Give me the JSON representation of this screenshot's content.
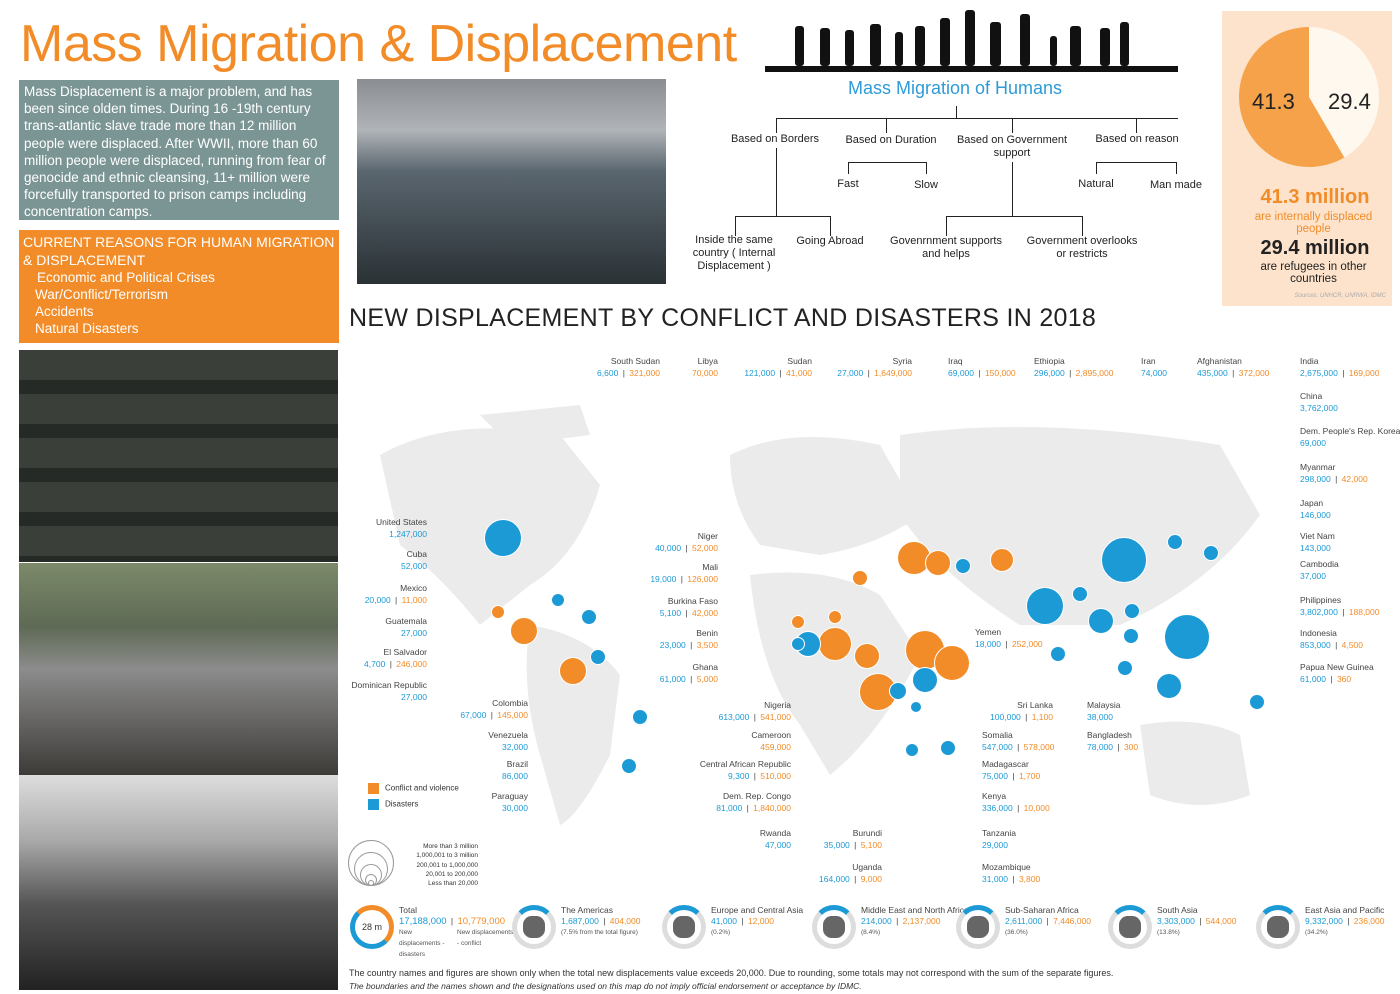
{
  "title": "Mass Migration & Displacement",
  "intro": "Mass Displacement is a major problem, and has been since olden times. During 16 -19th century trans-atlantic slave trade more than 12 million people were displaced. After WWII, more than 60 million people were displaced, running from fear of genocide and ethnic cleansing, 11+ million were forcefully transported to prison camps including concentration camps.",
  "reasons": {
    "heading": "CURRENT REASONS FOR HUMAN MIGRATION & DISPLACEMENT",
    "items": [
      "Economic and Political Crises",
      "War/Conflict/Terrorism",
      "Accidents",
      "Natural Disasters"
    ]
  },
  "tree": {
    "title": "Mass Migration of Humans",
    "borders": "Based on Borders",
    "duration": "Based on Duration",
    "government": "Based on Government support",
    "reason": "Based on reason",
    "fast": "Fast",
    "slow": "Slow",
    "natural": "Natural",
    "manmade": "Man made",
    "inside": "Inside the same country ( Internal Displacement )",
    "abroad": "Going Abroad",
    "gov_supports": "Govenrnment supports and helps",
    "gov_overlooks": "Government overlooks or restricts"
  },
  "stats": {
    "pie": [
      41.3,
      29.4
    ],
    "pie_left": "41.3",
    "pie_right": "29.4",
    "big1": "41.3 million",
    "sub1": "are internally displaced people",
    "big2": "29.4 million",
    "sub2": "are refugees in other countries",
    "source": "Sources: UNHCR, UNRWA, IDMC"
  },
  "map_title": "NEW DISPLACEMENT BY CONFLICT AND DISASTERS IN 2018",
  "colors": {
    "conflict": "#f28c28",
    "disasters": "#1c9ad6"
  },
  "countries": [
    {
      "name": "South Sudan",
      "d": "6,600",
      "c": "321,000"
    },
    {
      "name": "Libya",
      "c": "70,000"
    },
    {
      "name": "Sudan",
      "d": "121,000",
      "c": "41,000"
    },
    {
      "name": "Syria",
      "d": "27,000",
      "c": "1,649,000"
    },
    {
      "name": "Iraq",
      "d": "69,000",
      "c": "150,000"
    },
    {
      "name": "Ethiopia",
      "d": "296,000",
      "c": "2,895,000"
    },
    {
      "name": "Iran",
      "d": "74,000"
    },
    {
      "name": "Afghanistan",
      "d": "435,000",
      "c": "372,000"
    },
    {
      "name": "India",
      "d": "2,675,000",
      "c": "169,000"
    },
    {
      "name": "China",
      "d": "3,762,000"
    },
    {
      "name": "Dem. People's Rep. Korea",
      "d": "69,000"
    },
    {
      "name": "Myanmar",
      "d": "298,000",
      "c": "42,000"
    },
    {
      "name": "Japan",
      "d": "146,000"
    },
    {
      "name": "Viet Nam",
      "d": "143,000"
    },
    {
      "name": "Cambodia",
      "d": "37,000"
    },
    {
      "name": "Philippines",
      "d": "3,802,000",
      "c": "188,000"
    },
    {
      "name": "Indonesia",
      "d": "853,000",
      "c": "4,500"
    },
    {
      "name": "Papua New Guinea",
      "d": "61,000",
      "c": "360"
    },
    {
      "name": "United States",
      "d": "1,247,000"
    },
    {
      "name": "Cuba",
      "d": "52,000"
    },
    {
      "name": "Mexico",
      "d": "20,000",
      "c": "11,000"
    },
    {
      "name": "Guatemala",
      "d": "27,000"
    },
    {
      "name": "El Salvador",
      "d": "4,700",
      "c": "246,000"
    },
    {
      "name": "Dominican Republic",
      "d": "27,000"
    },
    {
      "name": "Colombia",
      "d": "67,000",
      "c": "145,000"
    },
    {
      "name": "Venezuela",
      "d": "32,000"
    },
    {
      "name": "Brazil",
      "d": "86,000"
    },
    {
      "name": "Paraguay",
      "d": "30,000"
    },
    {
      "name": "Niger",
      "d": "40,000",
      "c": "52,000"
    },
    {
      "name": "Mali",
      "d": "19,000",
      "c": "126,000"
    },
    {
      "name": "Burkina Faso",
      "d": "5,100",
      "c": "42,000"
    },
    {
      "name": "Benin",
      "d": "23,000",
      "c": "3,500"
    },
    {
      "name": "Ghana",
      "d": "61,000",
      "c": "5,000"
    },
    {
      "name": "Nigeria",
      "d": "613,000",
      "c": "541,000"
    },
    {
      "name": "Cameroon",
      "c": "459,000"
    },
    {
      "name": "Central African Republic",
      "d": "9,300",
      "c": "510,000"
    },
    {
      "name": "Dem. Rep. Congo",
      "d": "81,000",
      "c": "1,840,000"
    },
    {
      "name": "Rwanda",
      "d": "47,000"
    },
    {
      "name": "Burundi",
      "d": "35,000",
      "c": "5,100"
    },
    {
      "name": "Uganda",
      "d": "164,000",
      "c": "9,000"
    },
    {
      "name": "Yemen",
      "d": "18,000",
      "c": "252,000"
    },
    {
      "name": "Somalia",
      "d": "547,000",
      "c": "578,000"
    },
    {
      "name": "Madagascar",
      "d": "75,000",
      "c": "1,700"
    },
    {
      "name": "Kenya",
      "d": "336,000",
      "c": "10,000"
    },
    {
      "name": "Tanzania",
      "d": "29,000"
    },
    {
      "name": "Mozambique",
      "d": "31,000",
      "c": "3,800"
    },
    {
      "name": "Sri Lanka",
      "d": "100,000",
      "c": "1,100"
    },
    {
      "name": "Malaysia",
      "d": "38,000"
    },
    {
      "name": "Bangladesh",
      "d": "78,000",
      "c": "300"
    }
  ],
  "legend": {
    "conflict": "Conflict and violence",
    "disasters": "Disasters",
    "sizes": [
      "More than 3 million",
      "1,000,001 to 3 million",
      "200,001 to 1,000,000",
      "20,001 to 200,000",
      "Less than 20,000"
    ]
  },
  "regions": [
    {
      "name": "Total",
      "center": "28 m",
      "d": "17,188,000",
      "c": "10,779,000",
      "d_note": "New displacements - disasters",
      "c_note": "New displacements - conflict"
    },
    {
      "name": "The Americas",
      "d": "1,687,000",
      "c": "404,000",
      "pct": "(7.5% from the total figure)"
    },
    {
      "name": "Europe and Central Asia",
      "d": "41,000",
      "c": "12,000",
      "pct": "(0.2%)"
    },
    {
      "name": "Middle East and North Africa",
      "d": "214,000",
      "c": "2,137,000",
      "pct": "(8.4%)"
    },
    {
      "name": "Sub-Saharan Africa",
      "d": "2,611,000",
      "c": "7,446,000",
      "pct": "(36.0%)"
    },
    {
      "name": "South Asia",
      "d": "3,303,000",
      "c": "544,000",
      "pct": "(13.8%)"
    },
    {
      "name": "East Asia and Pacific",
      "d": "9,332,000",
      "c": "236,000",
      "pct": "(34.2%)"
    }
  ],
  "footnote": "The country names and figures are shown only when the total new displacements value exceeds 20,000. Due to rounding, some totals may not correspond with the sum of the separate figures.",
  "disclaimer": "The boundaries and the names shown and the designations used on this map do not imply official endorsement or acceptance by IDMC."
}
